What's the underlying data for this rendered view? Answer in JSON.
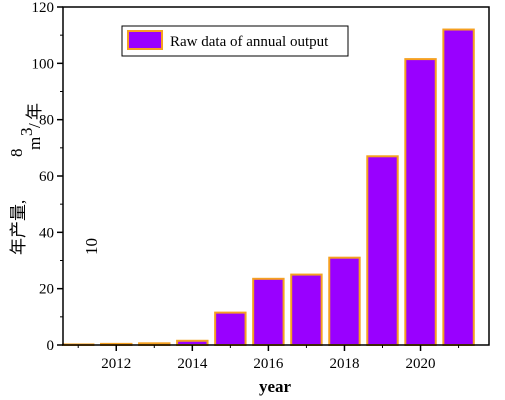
{
  "chart_data": {
    "type": "bar",
    "x": [
      2011,
      2012,
      2013,
      2014,
      2015,
      2016,
      2017,
      2018,
      2019,
      2020,
      2021
    ],
    "values": [
      0.2,
      0.4,
      0.6,
      1.5,
      11.5,
      23.5,
      25,
      31,
      67,
      101.5,
      112
    ],
    "series": [
      {
        "name": "Raw data of annual output",
        "values": [
          0.2,
          0.4,
          0.6,
          1.5,
          11.5,
          23.5,
          25,
          31,
          67,
          101.5,
          112
        ]
      }
    ],
    "xlabel": "year",
    "ylabel_parts": {
      "main": "年产量,",
      "exponent": "10",
      "superscript": "8",
      "unit": "m",
      "unit_sup": "3",
      "per": "/",
      "per_year": "年"
    },
    "xticks": [
      "2012",
      "2014",
      "2016",
      "2018",
      "2020"
    ],
    "yticks": [
      "0",
      "20",
      "40",
      "60",
      "80",
      "100",
      "120"
    ],
    "ylim": [
      0,
      120
    ],
    "xlim": [
      2010.6,
      2021.8
    ],
    "legend_position": "top-left",
    "colors": {
      "bar_fill": "#9900FF",
      "bar_edge": "#F5A020"
    }
  }
}
